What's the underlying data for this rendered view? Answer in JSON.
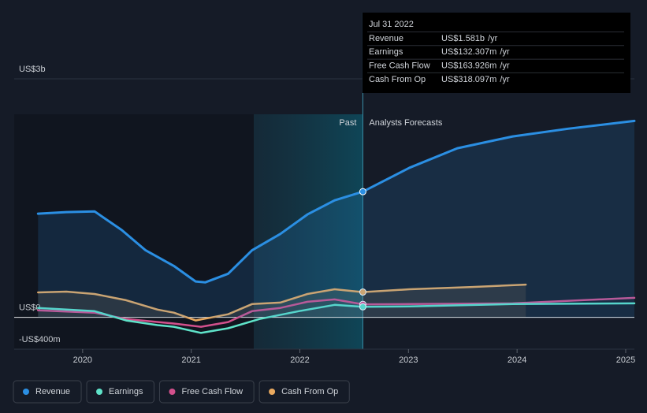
{
  "chart_data": {
    "type": "line",
    "xlim": [
      2019.37,
      2025.08
    ],
    "xticks": [
      2020,
      2021,
      2022,
      2023,
      2024,
      2025
    ],
    "ylim": [
      -400,
      3000
    ],
    "yticks": [
      {
        "value": 3000,
        "label": "US$3b"
      },
      {
        "value": 0,
        "label": "US$0"
      },
      {
        "value": -400,
        "label": "-US$400m"
      }
    ],
    "now": 2022.58,
    "past_label": "Past",
    "forecast_label": "Analysts Forecasts",
    "series": [
      {
        "name": "Revenue",
        "color": "#2b8fe3",
        "area": true,
        "x": [
          2019.59,
          2019.85,
          2020.11,
          2020.36,
          2020.58,
          2020.84,
          2021.04,
          2021.13,
          2021.34,
          2021.56,
          2021.82,
          2022.07,
          2022.32,
          2022.58,
          2023.01,
          2023.45,
          2023.96,
          2024.47,
          2025.08
        ],
        "values": [
          1304,
          1324,
          1333,
          1098,
          843,
          647,
          451,
          441,
          549,
          843,
          1049,
          1294,
          1471,
          1581,
          1882,
          2127,
          2275,
          2373,
          2471
        ]
      },
      {
        "name": "Earnings",
        "color": "#5fe3c9",
        "area": false,
        "x": [
          2019.59,
          2020.11,
          2020.4,
          2020.69,
          2020.84,
          2021.09,
          2021.34,
          2021.63,
          2021.99,
          2022.32,
          2022.58,
          2023.01,
          2023.96,
          2025.08
        ],
        "values": [
          118,
          78,
          -39,
          -98,
          -118,
          -196,
          -137,
          -20,
          78,
          157,
          132.307,
          137,
          167,
          176
        ]
      },
      {
        "name": "Free Cash Flow",
        "color": "#d2508c",
        "area": false,
        "x": [
          2019.59,
          2020.11,
          2020.4,
          2020.84,
          2021.09,
          2021.34,
          2021.56,
          2021.82,
          2022.07,
          2022.32,
          2022.58,
          2023.01,
          2023.96,
          2025.08
        ],
        "values": [
          88,
          59,
          -20,
          -78,
          -118,
          -59,
          78,
          118,
          196,
          225,
          163.926,
          167,
          176,
          245
        ]
      },
      {
        "name": "Cash From Op",
        "color": "#e9a95f",
        "area": true,
        "x": [
          2019.59,
          2019.85,
          2020.11,
          2020.4,
          2020.69,
          2020.84,
          2021.04,
          2021.34,
          2021.56,
          2021.82,
          2022.07,
          2022.32,
          2022.58,
          2023.01,
          2023.59,
          2024.08
        ],
        "values": [
          314,
          324,
          294,
          216,
          98,
          59,
          -39,
          39,
          167,
          186,
          294,
          353,
          318.097,
          353,
          382,
          412
        ]
      }
    ],
    "tooltip": {
      "title": "Jul 31 2022",
      "rows": [
        {
          "label": "Revenue",
          "value": "US$1.581b",
          "unit": "/yr"
        },
        {
          "label": "Earnings",
          "value": "US$132.307m",
          "unit": "/yr"
        },
        {
          "label": "Free Cash Flow",
          "value": "US$163.926m",
          "unit": "/yr"
        },
        {
          "label": "Cash From Op",
          "value": "US$318.097m",
          "unit": "/yr"
        }
      ]
    }
  }
}
